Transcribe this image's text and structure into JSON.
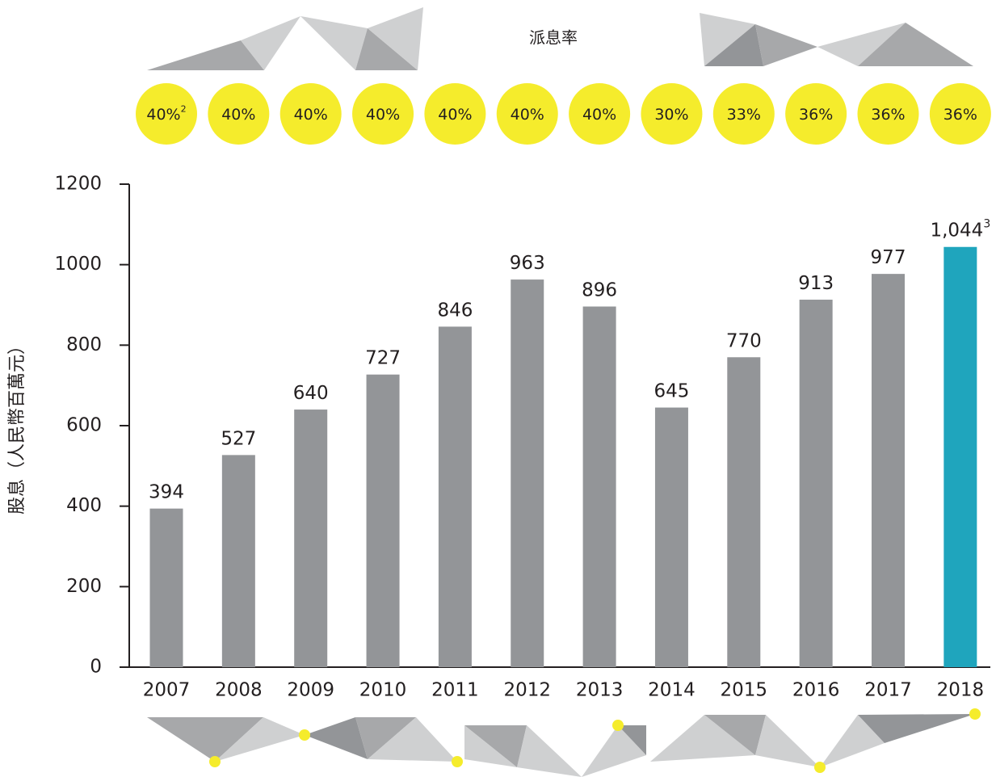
{
  "chart_data": {
    "type": "bar",
    "y_label": "股息（人民幣百萬元）",
    "categories": [
      "2007",
      "2008",
      "2009",
      "2010",
      "2011",
      "2012",
      "2013",
      "2014",
      "2015",
      "2016",
      "2017",
      "2018"
    ],
    "values": [
      394,
      527,
      640,
      727,
      846,
      963,
      896,
      645,
      770,
      913,
      977,
      1044
    ],
    "value_labels": [
      "394",
      "527",
      "640",
      "727",
      "846",
      "963",
      "896",
      "645",
      "770",
      "913",
      "977",
      "1,044"
    ],
    "note_marks": [
      null,
      null,
      null,
      null,
      null,
      null,
      null,
      null,
      null,
      null,
      null,
      "3"
    ],
    "colors": [
      "#939598",
      "#939598",
      "#939598",
      "#939598",
      "#939598",
      "#939598",
      "#939598",
      "#939598",
      "#939598",
      "#939598",
      "#939598",
      "#1fa5bd"
    ],
    "ylim": [
      0,
      1200
    ],
    "yticks": [
      0,
      200,
      400,
      600,
      800,
      1000,
      1200
    ],
    "payout_ratio": {
      "title": "派息率",
      "color": "#f5ec2c",
      "values": [
        40,
        40,
        40,
        40,
        40,
        40,
        40,
        30,
        33,
        36,
        36,
        36
      ],
      "value_labels": [
        "40%",
        "40%",
        "40%",
        "40%",
        "40%",
        "40%",
        "40%",
        "30%",
        "33%",
        "36%",
        "36%",
        "36%"
      ],
      "note_marks": [
        "2",
        null,
        null,
        null,
        null,
        null,
        null,
        null,
        null,
        null,
        null,
        null
      ]
    }
  }
}
